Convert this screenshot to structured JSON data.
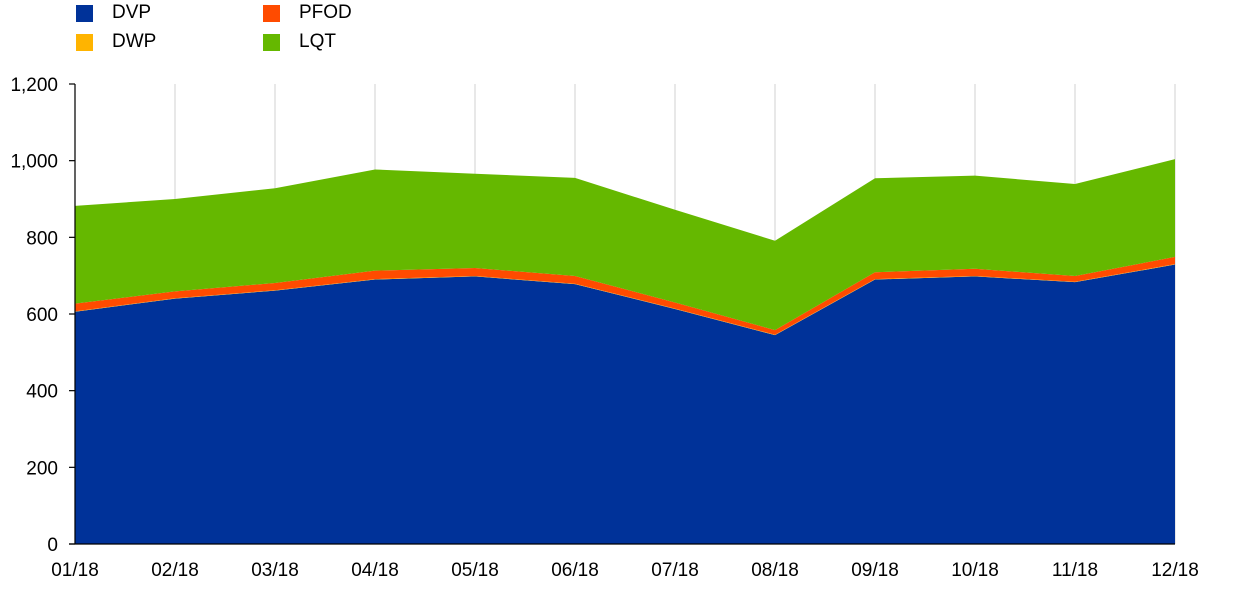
{
  "chart_data": {
    "type": "area",
    "stacked": true,
    "categories": [
      "01/18",
      "02/18",
      "03/18",
      "04/18",
      "05/18",
      "06/18",
      "07/18",
      "08/18",
      "09/18",
      "10/18",
      "11/18",
      "12/18"
    ],
    "series": [
      {
        "name": "DVP",
        "color": "#003299",
        "values": [
          606,
          640,
          661,
          690,
          698,
          678,
          613,
          545,
          690,
          698,
          683,
          729
        ]
      },
      {
        "name": "DWP",
        "color": "#FFB400",
        "values": [
          1,
          1,
          1,
          1,
          1,
          1,
          1,
          1,
          1,
          1,
          1,
          1
        ]
      },
      {
        "name": "PFOD",
        "color": "#FF4B00",
        "values": [
          20,
          18,
          19,
          22,
          21,
          20,
          16,
          12,
          18,
          19,
          15,
          19
        ]
      },
      {
        "name": "LQT",
        "color": "#65B800",
        "values": [
          255,
          241,
          247,
          264,
          246,
          256,
          242,
          233,
          245,
          243,
          240,
          255
        ]
      }
    ],
    "ylim": [
      0,
      1200
    ],
    "yticks": [
      0,
      200,
      400,
      600,
      800,
      1000,
      1200
    ],
    "ytick_labels": [
      "0",
      "200",
      "400",
      "600",
      "800",
      "1,000",
      "1,200"
    ],
    "grid": "vertical",
    "legend_position": "top-left",
    "xlabel": "",
    "ylabel": "",
    "title": ""
  }
}
